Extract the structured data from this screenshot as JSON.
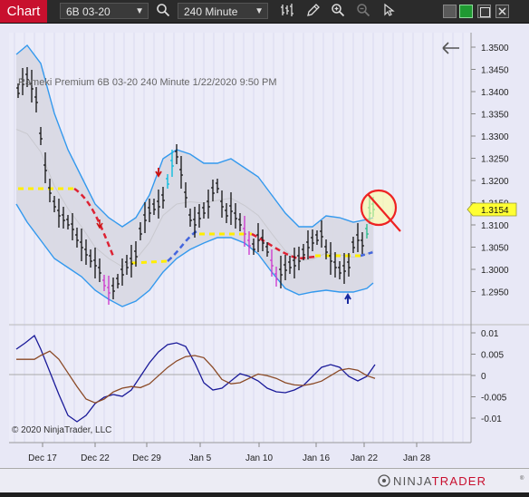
{
  "toolbar": {
    "tab_label": "Chart",
    "instrument": "6B 03-20",
    "interval": "240 Minute"
  },
  "chart": {
    "header_text": "Rameki  Premium  6B 03-20  240 Minute  1/22/2020 9:50 PM",
    "copyright": "© 2020 NinjaTrader, LLC",
    "current_price": "1.3154",
    "price_ticks": [
      "1.3500",
      "1.3450",
      "1.3400",
      "1.3350",
      "1.3300",
      "1.3250",
      "1.3200",
      "1.3150",
      "1.3100",
      "1.3050",
      "1.3000",
      "1.2950"
    ],
    "osc_ticks": [
      "0.01",
      "0.005",
      "0",
      "-0.005",
      "-0.01"
    ],
    "date_ticks": [
      "Dec 17",
      "Dec 22",
      "Dec 29",
      "Jan 5",
      "Jan 10",
      "Jan 16",
      "Jan 22",
      "Jan 28"
    ]
  },
  "brand": {
    "name_part1": "NINJA",
    "name_part2": "TRADER",
    "reg": "®"
  },
  "colors": {
    "tab": "#c8102e",
    "band": "#3399ee",
    "price_badge": "#ffff33",
    "osc_fast": "#1a1a99",
    "osc_slow": "#8b4a26"
  }
}
